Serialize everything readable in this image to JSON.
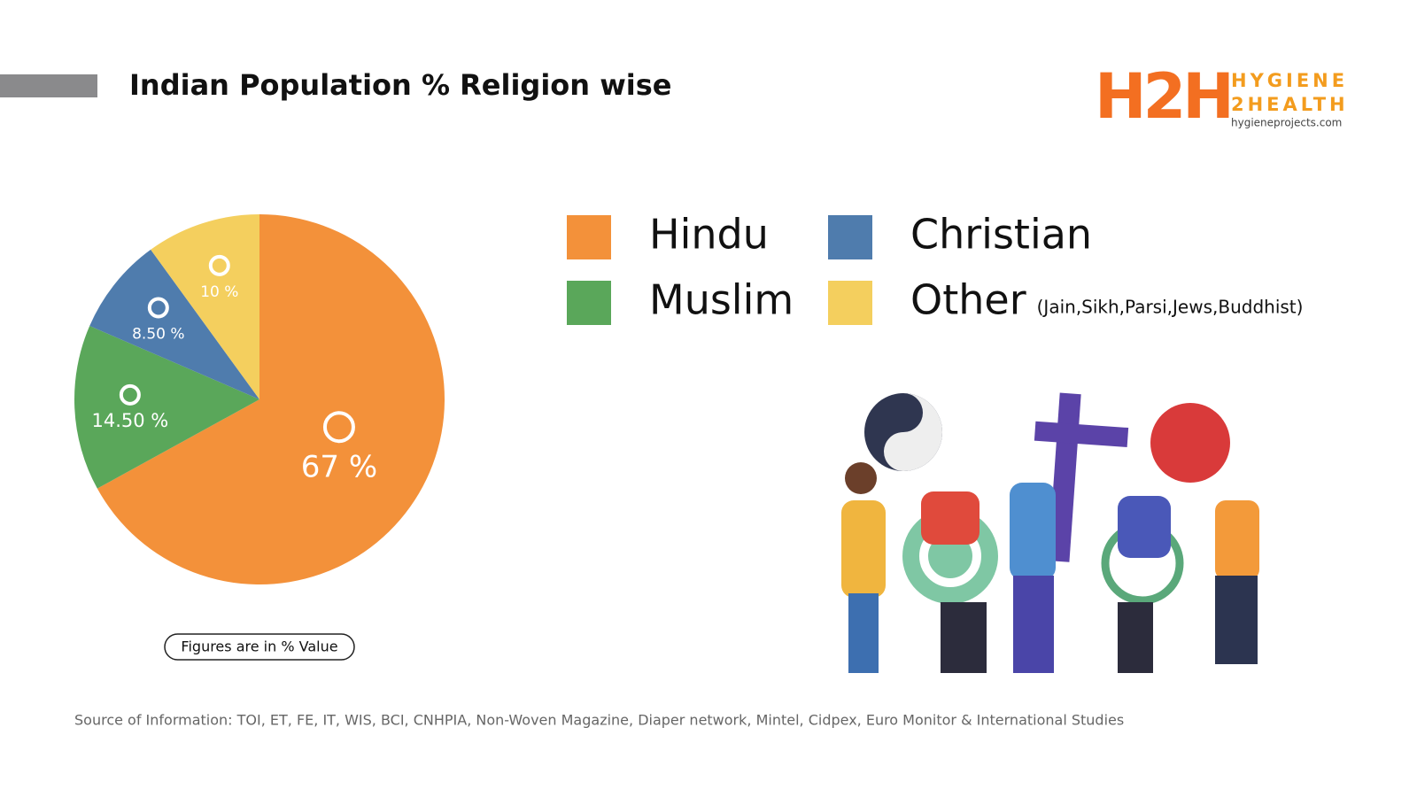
{
  "chart_data": {
    "type": "pie",
    "title": "Indian Population % Religion wise",
    "categories": [
      "Hindu",
      "Muslim",
      "Christian",
      "Other"
    ],
    "values": [
      67,
      14.5,
      8.5,
      10
    ],
    "value_labels": [
      "67 %",
      "14.50 %",
      "8.50 %",
      "10 %"
    ],
    "colors": [
      "#f3913a",
      "#5aa75a",
      "#4f7cad",
      "#f4cf5e"
    ],
    "other_note": "(Jain,Sikh,Parsi,Jews,Buddhist)",
    "note": "Figures are in % Value"
  },
  "logo": {
    "mark": "H2H",
    "line1": "HYGIENE",
    "line2": "2HEALTH",
    "url": "hygieneprojects.com"
  },
  "source": "Source of Information: TOI, ET, FE, IT, WIS, BCI, CNHPIA, Non-Woven Magazine, Diaper network, Mintel, Cidpex, Euro Monitor & International Studies"
}
